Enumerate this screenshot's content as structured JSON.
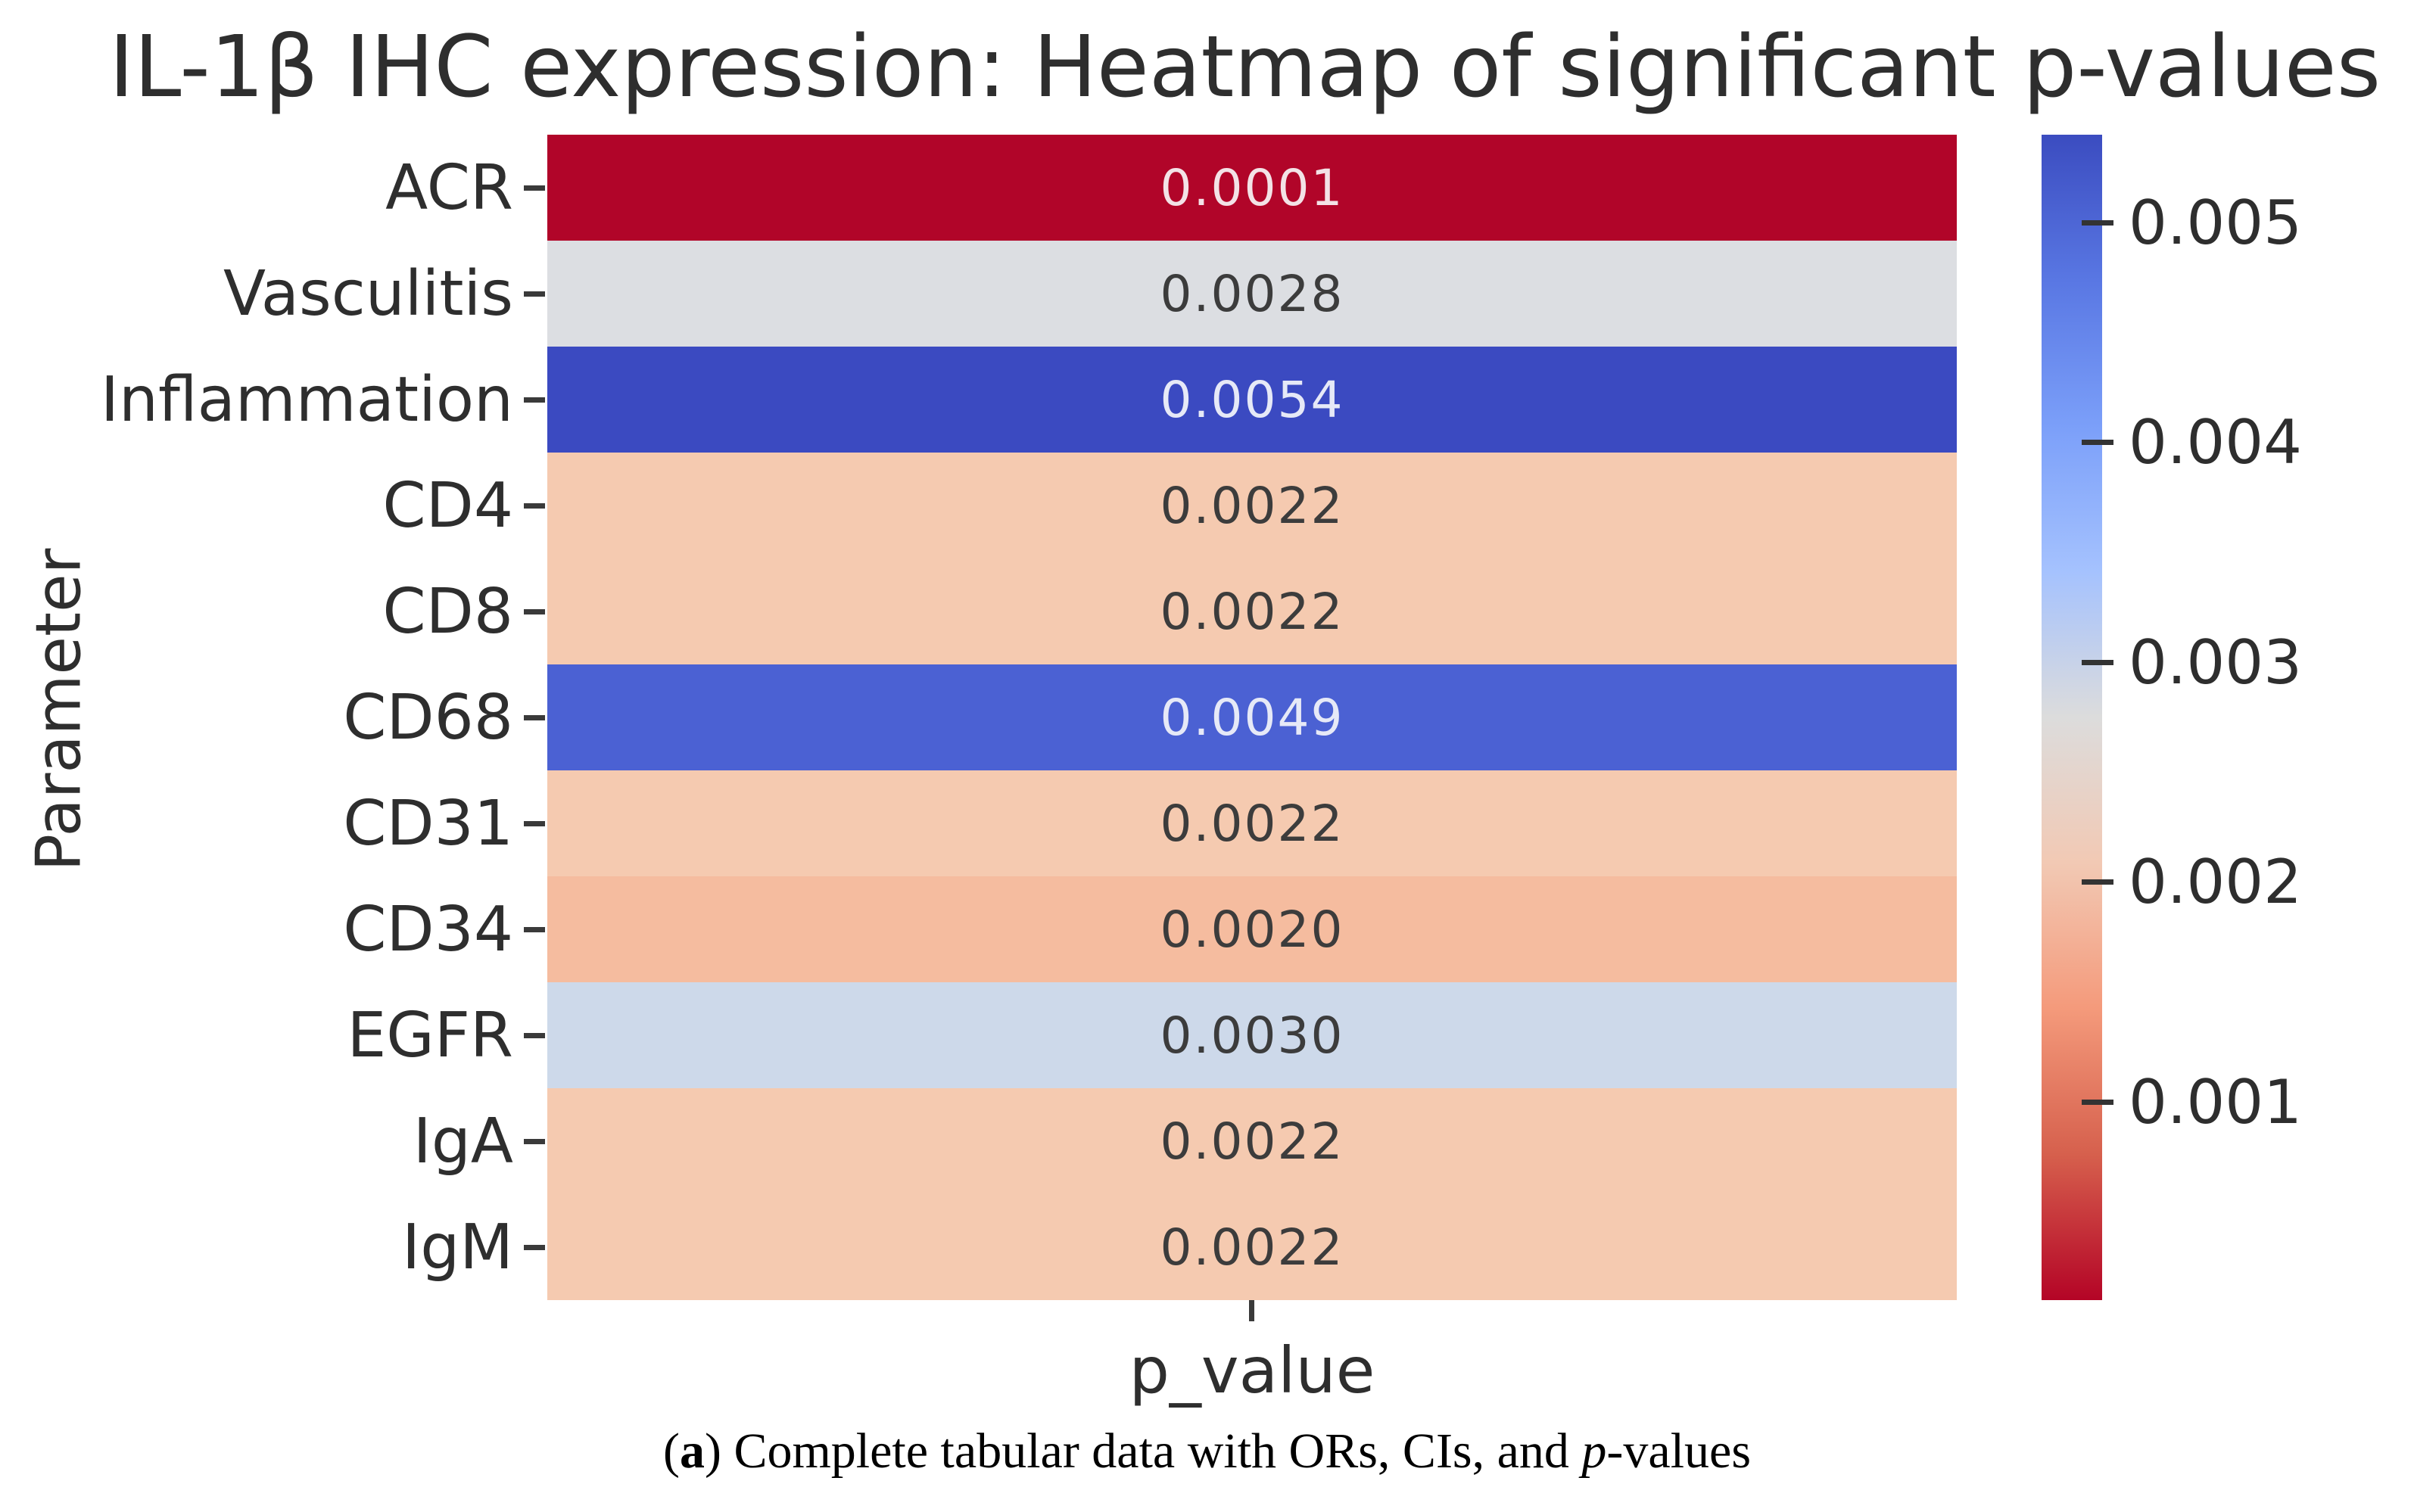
{
  "chart_data": {
    "type": "heatmap",
    "title": "IL-1β IHC expression: Heatmap of significant p-values",
    "xlabel": "p_value",
    "ylabel": "Parameter",
    "x_categories": [
      "p_value"
    ],
    "y_categories": [
      "ACR",
      "Vasculitis",
      "Inflammation",
      "CD4",
      "CD8",
      "CD68",
      "CD31",
      "CD34",
      "EGFR",
      "IgA",
      "IgM"
    ],
    "values": [
      0.0001,
      0.0028,
      0.0054,
      0.0022,
      0.0022,
      0.0049,
      0.0022,
      0.002,
      0.003,
      0.0022,
      0.0022
    ],
    "cells": [
      {
        "row": "ACR",
        "label": "0.0001",
        "value": 0.0001,
        "bg": "#b10529",
        "fg": "#f3e2e6"
      },
      {
        "row": "Vasculitis",
        "label": "0.0028",
        "value": 0.0028,
        "bg": "#dcdee2",
        "fg": "#3c3c3c"
      },
      {
        "row": "Inflammation",
        "label": "0.0054",
        "value": 0.0054,
        "bg": "#3b4ac1",
        "fg": "#e6e9f7"
      },
      {
        "row": "CD4",
        "label": "0.0022",
        "value": 0.0022,
        "bg": "#f5cab0",
        "fg": "#3c3c3c"
      },
      {
        "row": "CD8",
        "label": "0.0022",
        "value": 0.0022,
        "bg": "#f5cab0",
        "fg": "#3c3c3c"
      },
      {
        "row": "CD68",
        "label": "0.0049",
        "value": 0.0049,
        "bg": "#4b61d3",
        "fg": "#e6e9f7"
      },
      {
        "row": "CD31",
        "label": "0.0022",
        "value": 0.0022,
        "bg": "#f5cab0",
        "fg": "#3c3c3c"
      },
      {
        "row": "CD34",
        "label": "0.0020",
        "value": 0.002,
        "bg": "#f5bc9f",
        "fg": "#3c3c3c"
      },
      {
        "row": "EGFR",
        "label": "0.0030",
        "value": 0.003,
        "bg": "#cdd9ea",
        "fg": "#3c3c3c"
      },
      {
        "row": "IgA",
        "label": "0.0022",
        "value": 0.0022,
        "bg": "#f5cab0",
        "fg": "#3c3c3c"
      },
      {
        "row": "IgM",
        "label": "0.0022",
        "value": 0.0022,
        "bg": "#f5cab0",
        "fg": "#3c3c3c"
      }
    ],
    "colormap": "coolwarm reversed (red = low p-value, blue = high p-value)",
    "colorbar": {
      "vmin": 0.0001,
      "vmax": 0.0054,
      "tick_labels": [
        "0.005",
        "0.004",
        "0.003",
        "0.002",
        "0.001"
      ],
      "gradient": [
        "#3b4cc0",
        "#5977e3",
        "#7b9ff9",
        "#a5c2fe",
        "#dcdcdc",
        "#f2c9b4",
        "#f49a7b",
        "#d6604d",
        "#b40426"
      ]
    },
    "grid": false,
    "legend_position": "right-colorbar"
  },
  "caption": {
    "open_paren": "(",
    "label": "a",
    "close_paren": ") ",
    "text": "Complete tabular data with ORs, CIs, and ",
    "p": "p",
    "suffix": "-values"
  }
}
